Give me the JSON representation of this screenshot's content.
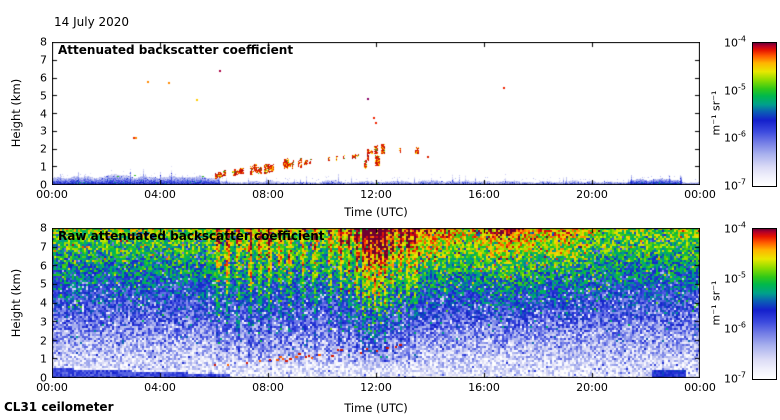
{
  "page": {
    "title_date": "14 July 2020",
    "instrument": "CL31 ceilometer"
  },
  "colormap": [
    {
      "t": 0.0,
      "hex": "#ffffff"
    },
    {
      "t": 0.06,
      "hex": "#f2f2fc"
    },
    {
      "t": 0.13,
      "hex": "#dcdcf6"
    },
    {
      "t": 0.22,
      "hex": "#aab2ee"
    },
    {
      "t": 0.3,
      "hex": "#7680e6"
    },
    {
      "t": 0.38,
      "hex": "#3c4ade"
    },
    {
      "t": 0.46,
      "hex": "#1420cc"
    },
    {
      "t": 0.52,
      "hex": "#0a5fb4"
    },
    {
      "t": 0.57,
      "hex": "#00a08c"
    },
    {
      "t": 0.63,
      "hex": "#00b84c"
    },
    {
      "t": 0.68,
      "hex": "#30c818"
    },
    {
      "t": 0.74,
      "hex": "#8cdc00"
    },
    {
      "t": 0.8,
      "hex": "#e8e800"
    },
    {
      "t": 0.86,
      "hex": "#ffb400"
    },
    {
      "t": 0.91,
      "hex": "#ff5a00"
    },
    {
      "t": 0.95,
      "hex": "#e61400"
    },
    {
      "t": 0.98,
      "hex": "#b40028"
    },
    {
      "t": 1.0,
      "hex": "#6e0032"
    }
  ],
  "chart_data": [
    {
      "type": "heatmap",
      "title": "Attenuated backscatter coefficient",
      "xlabel": "Time (UTC)",
      "ylabel": "Height (km)",
      "x_ticks": [
        "00:00",
        "04:00",
        "08:00",
        "12:00",
        "16:00",
        "20:00",
        "00:00"
      ],
      "x_range_hours": [
        0,
        24
      ],
      "y_ticks": [
        "0",
        "1",
        "2",
        "3",
        "4",
        "5",
        "6",
        "7",
        "8"
      ],
      "y_range_km": [
        0,
        8
      ],
      "scale": "log",
      "colorbar": {
        "unit_label": "m⁻¹ sr⁻¹",
        "ticks": [
          {
            "base": "10",
            "exp": "-4"
          },
          {
            "base": "10",
            "exp": "-5"
          },
          {
            "base": "10",
            "exp": "-6"
          },
          {
            "base": "10",
            "exp": "-7"
          }
        ]
      },
      "features": {
        "surface_band": {
          "day_top_km": 0.27,
          "morning": {
            "t_end": 6.2,
            "top_km": 0.5
          },
          "evening_patch": {
            "t_start": 21.4,
            "t_end": 23.3,
            "top_km": 0.4
          }
        },
        "trail_segments": [
          {
            "t0": 6.0,
            "t1": 7.1,
            "h0": 0.55,
            "h1": 0.8,
            "p": 0.75,
            "jit": 0.1,
            "w": 3,
            "h": 5
          },
          {
            "t0": 7.1,
            "t1": 9.25,
            "h0": 0.8,
            "h1": 1.25,
            "p": 0.7,
            "jit": 0.16,
            "w": 4,
            "h": 8
          },
          {
            "t0": 9.25,
            "t1": 11.3,
            "h0": 1.25,
            "h1": 1.6,
            "p": 0.26,
            "jit": 0.14,
            "w": 2.5,
            "h": 4
          },
          {
            "t0": 11.55,
            "t1": 12.2,
            "h0": 1.45,
            "h1": 1.75,
            "p": 0.95,
            "jit": 0.85,
            "w": 4,
            "h": 10
          },
          {
            "t0": 12.45,
            "t1": 13.65,
            "h0": 1.85,
            "h1": 2.0,
            "p": 0.42,
            "jit": 0.25,
            "w": 3.5,
            "h": 7
          }
        ],
        "sparse_dots": [
          {
            "t": 3.0,
            "h": 2.7,
            "c": "#e83000"
          },
          {
            "t": 3.08,
            "h": 2.66,
            "c": "#ff8800"
          },
          {
            "t": 3.5,
            "h": 5.8,
            "c": "#ff8800"
          },
          {
            "t": 4.3,
            "h": 5.75,
            "c": "#ff8800"
          },
          {
            "t": 5.35,
            "h": 4.8,
            "c": "#ffcc00"
          },
          {
            "t": 6.2,
            "h": 6.45,
            "c": "#aa0044"
          },
          {
            "t": 11.65,
            "h": 4.85,
            "c": "#880066"
          },
          {
            "t": 11.9,
            "h": 3.8,
            "c": "#ee2200"
          },
          {
            "t": 11.95,
            "h": 3.5,
            "c": "#ee2200"
          },
          {
            "t": 13.9,
            "h": 1.65,
            "c": "#dd2200"
          },
          {
            "t": 16.7,
            "h": 5.5,
            "c": "#ee2200"
          }
        ],
        "green_dots": [
          {
            "t": 2.4,
            "h": 0.52
          },
          {
            "t": 3.05,
            "h": 0.56
          },
          {
            "t": 5.55,
            "h": 0.5
          },
          {
            "t": 12.0,
            "h": 0.12
          }
        ]
      }
    },
    {
      "type": "heatmap",
      "title": "Raw attenuated backscatter coefficient",
      "xlabel": "Time (UTC)",
      "ylabel": "Height (km)",
      "x_ticks": [
        "00:00",
        "04:00",
        "08:00",
        "12:00",
        "16:00",
        "20:00",
        "00:00"
      ],
      "x_range_hours": [
        0,
        24
      ],
      "y_ticks": [
        "0",
        "1",
        "2",
        "3",
        "4",
        "5",
        "6",
        "7",
        "8"
      ],
      "y_range_km": [
        0,
        8
      ],
      "scale": "log",
      "colorbar": {
        "unit_label": "m⁻¹ sr⁻¹",
        "ticks": [
          {
            "base": "10",
            "exp": "-4"
          },
          {
            "base": "10",
            "exp": "-5"
          },
          {
            "base": "10",
            "exp": "-6"
          },
          {
            "base": "10",
            "exp": "-7"
          }
        ]
      },
      "features": {
        "noise_base": {
          "v_at_0km": 0.07,
          "v_per_km": 0.084,
          "jitter": 0.3
        },
        "red_streaks": [
          {
            "t": 6.15,
            "s": 0.5
          },
          {
            "t": 6.5,
            "s": 0.6
          },
          {
            "t": 6.9,
            "s": 0.55
          },
          {
            "t": 7.35,
            "s": 0.7
          },
          {
            "t": 7.7,
            "s": 0.55
          },
          {
            "t": 8.05,
            "s": 0.65
          },
          {
            "t": 8.45,
            "s": 0.5
          },
          {
            "t": 8.8,
            "s": 0.55
          },
          {
            "t": 9.3,
            "s": 0.45
          },
          {
            "t": 9.75,
            "s": 0.5
          },
          {
            "t": 10.3,
            "s": 0.55
          },
          {
            "t": 10.7,
            "s": 0.65
          },
          {
            "t": 11.0,
            "s": 0.6
          },
          {
            "t": 11.3,
            "s": 0.75
          },
          {
            "t": 11.55,
            "s": 0.85
          },
          {
            "t": 11.75,
            "s": 0.95
          },
          {
            "t": 11.95,
            "s": 1.0
          },
          {
            "t": 12.15,
            "s": 0.95
          },
          {
            "t": 12.35,
            "s": 0.85
          },
          {
            "t": 12.6,
            "s": 0.65
          },
          {
            "t": 12.9,
            "s": 0.6
          },
          {
            "t": 13.2,
            "s": 0.55
          },
          {
            "t": 13.45,
            "s": 0.45
          }
        ],
        "warm_patches": [
          {
            "t": 13.9,
            "sigma": 1.2,
            "a": 0.17
          },
          {
            "t": 16.8,
            "sigma": 1.3,
            "a": 0.22
          },
          {
            "t": 19.1,
            "sigma": 0.7,
            "a": 0.12
          }
        ],
        "surface_layer": {
          "t_end": 6.6,
          "top0_km": 0.52,
          "slope_km_per_h": 0.05
        },
        "evening_blob": {
          "t0": 22.2,
          "t1": 23.5,
          "top_km": 0.45
        },
        "cloud_base_dots": {
          "t0": 6.0,
          "t1": 13.5,
          "h0": 0.72,
          "rise_km_per_h": 0.15,
          "jit": 0.3,
          "p": 0.5
        }
      }
    }
  ]
}
